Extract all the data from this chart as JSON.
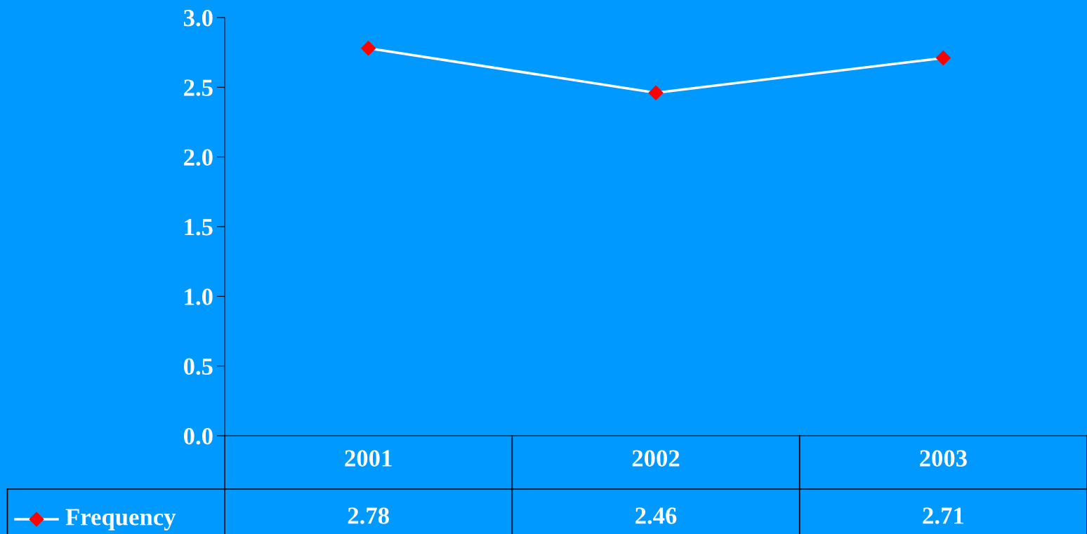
{
  "chart_data": {
    "type": "line",
    "categories": [
      "2001",
      "2002",
      "2003"
    ],
    "series": [
      {
        "name": "Frequency",
        "color": "#ffffff",
        "values": [
          2.78,
          2.46,
          2.71
        ]
      }
    ],
    "ylim": [
      0,
      3.0
    ],
    "yticks": [
      {
        "value": 0,
        "label": "0.0"
      },
      {
        "value": 0.5,
        "label": "0.5"
      },
      {
        "value": 1.0,
        "label": "1.0"
      },
      {
        "value": 1.5,
        "label": "1.5"
      },
      {
        "value": 2.0,
        "label": "2.0"
      },
      {
        "value": 2.5,
        "label": "2.5"
      },
      {
        "value": 3.0,
        "label": "3.0"
      }
    ],
    "data_labels": true,
    "legend": "bottom left",
    "grid": false,
    "marker": "diamond",
    "line_style": "solid"
  }
}
